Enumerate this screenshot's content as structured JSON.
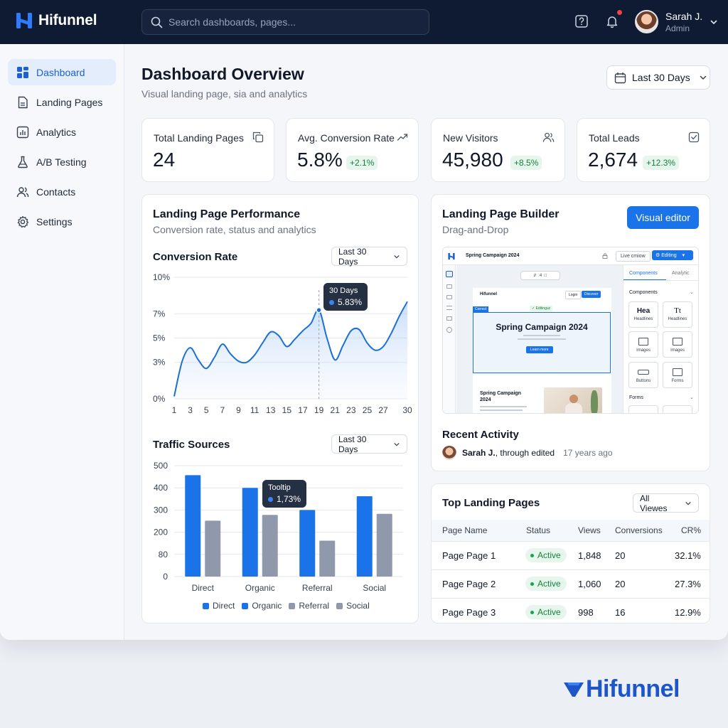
{
  "brand": {
    "name": "Hifunnel",
    "accent": "#1a73e8"
  },
  "search": {
    "placeholder": "Search dashboards, pages..."
  },
  "user": {
    "name": "Sarah J.",
    "role": "Admin"
  },
  "sidebar": {
    "items": [
      {
        "label": "Dashboard",
        "icon": "dashboard-icon",
        "active": true
      },
      {
        "label": "Landing Pages",
        "icon": "file-icon"
      },
      {
        "label": "Analytics",
        "icon": "bar-chart-icon"
      },
      {
        "label": "A/B Testing",
        "icon": "flask-icon"
      },
      {
        "label": "Contacts",
        "icon": "users-icon"
      },
      {
        "label": "Settings",
        "icon": "gear-icon"
      }
    ]
  },
  "header": {
    "title": "Dashboard Overview",
    "subtitle": "Visual landing page, sia and analytics",
    "range": "Last 30 Days"
  },
  "kpis": [
    {
      "label": "Total Landing Pages",
      "value": "24",
      "change": "",
      "icon": "copy-icon"
    },
    {
      "label": "Avg. Conversion Rate",
      "value": "5.8%",
      "change": "+2.1%",
      "icon": "trend-up-icon"
    },
    {
      "label": "New Visitors",
      "value": "45,980",
      "change": "+8.5%",
      "icon": "users-icon"
    },
    {
      "label": "Total Leads",
      "value": "2,674",
      "change": "+12.3%",
      "icon": "check-square-icon"
    }
  ],
  "performance": {
    "title": "Landing Page Performance",
    "subtitle": "Conversion rate, status and analytics",
    "conversion": {
      "title": "Conversion Rate",
      "range": "Last 30 Days",
      "tooltip_title": "30 Days",
      "tooltip_value": "5.83%"
    },
    "traffic": {
      "title": "Traffic Sources",
      "range": "Last 30 Days",
      "tooltip_title": "Tooltip",
      "tooltip_value": "1,73%"
    }
  },
  "chart_data": [
    {
      "type": "area",
      "title": "Conversion Rate",
      "x": [
        1,
        2,
        3,
        4,
        5,
        6,
        7,
        8,
        9,
        10,
        11,
        12,
        13,
        14,
        15,
        16,
        17,
        18,
        19,
        20,
        21,
        22,
        23,
        24,
        25,
        26,
        27,
        28,
        29,
        30
      ],
      "series": [
        {
          "values": [
            0.2,
            3.1,
            4.2,
            3.2,
            2.5,
            3.4,
            4.5,
            3.7,
            3.1,
            3.0,
            3.6,
            4.6,
            5.5,
            5.2,
            4.3,
            4.9,
            5.6,
            6.2,
            7.3,
            5.0,
            3.2,
            4.4,
            5.6,
            5.7,
            4.6,
            4.0,
            4.3,
            5.4,
            6.8,
            8.0
          ]
        }
      ],
      "x_ticks": [
        "1",
        "3",
        "5",
        "7",
        "9",
        "11",
        "13",
        "15",
        "17",
        "19",
        "21",
        "23",
        "25",
        "27",
        "30"
      ],
      "y_ticks": [
        "0%",
        "3%",
        "5%",
        "7%",
        "10%"
      ],
      "ylim": [
        0,
        10
      ],
      "grid": true,
      "highlight_x": 19
    },
    {
      "type": "bar",
      "title": "Traffic Sources",
      "categories": [
        "Direct",
        "Organic",
        "Referral",
        "Social"
      ],
      "series": [
        {
          "name": "Direct",
          "values": [
            457,
            400,
            300,
            362
          ],
          "color": "#1a73e8"
        },
        {
          "name": "Referral",
          "values": [
            252,
            278,
            162,
            283
          ],
          "color": "#8f99ab"
        }
      ],
      "y_ticks": [
        "0",
        "80",
        "200",
        "300",
        "400",
        "500"
      ],
      "ylim": [
        0,
        500
      ],
      "grid": true,
      "legend": [
        {
          "name": "Direct",
          "color": "#1a73e8"
        },
        {
          "name": "Organic",
          "color": "#1a73e8"
        },
        {
          "name": "Referral",
          "color": "#8f99ab"
        },
        {
          "name": "Social",
          "color": "#8f99ab"
        }
      ],
      "legend_position": "bottom"
    }
  ],
  "builder": {
    "title": "Landing Page Builder",
    "subtitle": "Drag-and-Drop",
    "button": "Visual editor",
    "preview": {
      "project": "Spring Campaign 2024",
      "live": "Live cmiow",
      "editing": "Editing",
      "tabs": [
        "Components",
        "Analytic"
      ],
      "section": "Components",
      "tiles": [
        {
          "glyph": "Hea",
          "label": "Headlines"
        },
        {
          "glyph": "Tt",
          "label": "Headlines"
        },
        {
          "glyph": "",
          "label": "Images"
        },
        {
          "glyph": "",
          "label": "Images"
        },
        {
          "glyph": "",
          "label": "Buttons"
        },
        {
          "glyph": "",
          "label": "Forms"
        }
      ],
      "forms_section": "Forms",
      "site_brand": "Hifunnel",
      "site_login": "Login",
      "site_cta": "Discover",
      "tag_correct": "Correct",
      "tag_editing": "✓ Editinguz",
      "hero_title": "Spring Campaign 2024",
      "hero_cta": "Learn more",
      "card_title": "Spring Campaign 2024"
    }
  },
  "activity": {
    "title": "Recent Activity",
    "user": "Sarah J.",
    "action": ", through edited",
    "time": "17 years ago"
  },
  "top_pages": {
    "title": "Top Landing Pages",
    "filter": "All Viewes",
    "columns": [
      "Page Name",
      "Status",
      "Views",
      "Conversions",
      "CR%"
    ],
    "rows": [
      {
        "name": "Page Page 1",
        "status": "Active",
        "views": "1,848",
        "conversions": "20",
        "cr": "32.1%"
      },
      {
        "name": "Page Page 2",
        "status": "Active",
        "views": "1,060",
        "conversions": "20",
        "cr": "27.3%"
      },
      {
        "name": "Page Page 3",
        "status": "Active",
        "views": "998",
        "conversions": "16",
        "cr": "12.9%"
      }
    ]
  },
  "footer": {
    "logo": "Hifunnel"
  }
}
